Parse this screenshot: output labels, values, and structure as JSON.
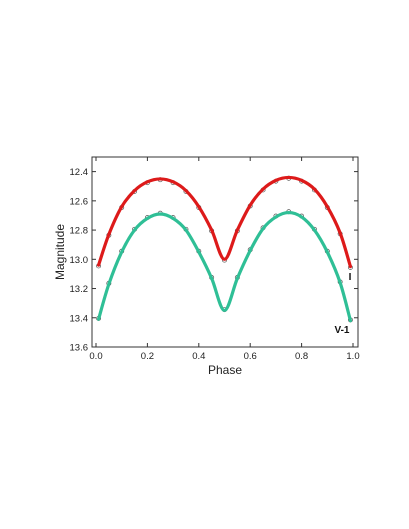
{
  "chart_data": {
    "type": "line",
    "title": "",
    "xlabel": "Phase",
    "ylabel": "Magnitude",
    "xlim": [
      0.0,
      1.0
    ],
    "ylim": [
      13.6,
      12.3
    ],
    "y_inverted": true,
    "grid": false,
    "xticks": [
      "0.0",
      "0.2",
      "0.4",
      "0.6",
      "0.8",
      "1.0"
    ],
    "yticks": [
      "12.4",
      "12.6",
      "12.8",
      "13.0",
      "13.2",
      "13.4",
      "13.6"
    ],
    "series": [
      {
        "name": "I",
        "color": "#dd1a1a",
        "marker": "open-circle",
        "x": [
          0.01,
          0.05,
          0.1,
          0.15,
          0.2,
          0.25,
          0.3,
          0.35,
          0.4,
          0.45,
          0.5,
          0.55,
          0.6,
          0.65,
          0.7,
          0.75,
          0.8,
          0.85,
          0.9,
          0.95,
          0.99
        ],
        "y": [
          13.04,
          12.83,
          12.64,
          12.53,
          12.47,
          12.45,
          12.47,
          12.53,
          12.64,
          12.8,
          13.0,
          12.8,
          12.63,
          12.52,
          12.46,
          12.44,
          12.46,
          12.52,
          12.64,
          12.82,
          13.05
        ]
      },
      {
        "name": "V-1",
        "color": "#2fbf96",
        "marker": "open-circle",
        "x": [
          0.01,
          0.05,
          0.1,
          0.15,
          0.2,
          0.25,
          0.3,
          0.35,
          0.4,
          0.45,
          0.5,
          0.55,
          0.6,
          0.65,
          0.7,
          0.75,
          0.8,
          0.85,
          0.9,
          0.95,
          0.99
        ],
        "y": [
          13.41,
          13.17,
          12.95,
          12.8,
          12.72,
          12.69,
          12.72,
          12.8,
          12.95,
          13.13,
          13.35,
          13.13,
          12.94,
          12.79,
          12.71,
          12.68,
          12.71,
          12.8,
          12.95,
          13.16,
          13.42
        ]
      }
    ]
  }
}
